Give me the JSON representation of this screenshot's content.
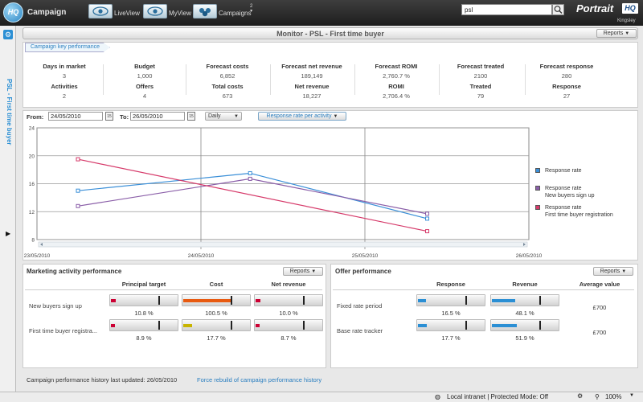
{
  "app": {
    "title": "Campaign",
    "logo": "HQ",
    "brand": "Portrait",
    "brand_badge": "HQ",
    "user": "Kingsley"
  },
  "nav": {
    "liveview": "LiveView",
    "myview": "MyView",
    "campaigns": "Campaigns",
    "campaigns_count": "2"
  },
  "search": {
    "value": "psl"
  },
  "sidebar": {
    "title": "PSL - First time buyer"
  },
  "page": {
    "title": "Monitor - PSL - First time buyer",
    "reports_label": "Reports"
  },
  "kpi": {
    "tab_label": "Campaign key performance",
    "row1": [
      {
        "label": "Days in market",
        "value": "3"
      },
      {
        "label": "Budget",
        "value": "1,000"
      },
      {
        "label": "Forecast costs",
        "value": "6,852"
      },
      {
        "label": "Forecast net revenue",
        "value": "189,149"
      },
      {
        "label": "Forecast ROMI",
        "value": "2,760.7 %"
      },
      {
        "label": "Forecast treated",
        "value": "2100"
      },
      {
        "label": "Forecast response",
        "value": "280"
      }
    ],
    "row2": [
      {
        "label": "Activities",
        "value": "2"
      },
      {
        "label": "Offers",
        "value": "4"
      },
      {
        "label": "Total costs",
        "value": "673"
      },
      {
        "label": "Net revenue",
        "value": "18,227"
      },
      {
        "label": "ROMI",
        "value": "2,706.4 %"
      },
      {
        "label": "Treated",
        "value": "79"
      },
      {
        "label": "Response",
        "value": "27"
      }
    ]
  },
  "chart_controls": {
    "from_label": "From:",
    "from_value": "24/05/2010",
    "to_label": "To:",
    "to_value": "26/05/2010",
    "cal_label": "15",
    "interval": "Daily",
    "metric": "Response rate per activity"
  },
  "chart_data": {
    "type": "line",
    "x": [
      "23/05/2010",
      "24/05/2010",
      "25/05/2010",
      "26/05/2010"
    ],
    "ylim": [
      8,
      24
    ],
    "yticks": [
      8,
      12,
      16,
      20,
      24
    ],
    "series": [
      {
        "name": "Response rate",
        "color": "#3a8fd8",
        "x": [
          0.25,
          1.3,
          2.38
        ],
        "values": [
          15,
          17.5,
          11
        ]
      },
      {
        "name": "Response rate\nNew buyers sign up",
        "color": "#8a5ea8",
        "x": [
          0.25,
          1.3,
          2.38
        ],
        "values": [
          12.8,
          16.7,
          11.7
        ]
      },
      {
        "name": "Response rate\nFirst time buyer registration",
        "color": "#d63a6a",
        "x": [
          0.25,
          2.38
        ],
        "values": [
          19.5,
          9.2
        ]
      }
    ],
    "legend": "right"
  },
  "activity": {
    "title": "Marketing activity performance",
    "reports_label": "Reports",
    "columns": [
      "Principal target",
      "Cost",
      "Net revenue"
    ],
    "rows": [
      {
        "label": "New buyers sign up",
        "cells": [
          {
            "text": "10.8 %",
            "fill": 0.108,
            "color": "#cc0033"
          },
          {
            "text": "100.5 %",
            "fill": 1.005,
            "color": "#e85a10"
          },
          {
            "text": "10.0 %",
            "fill": 0.1,
            "color": "#cc0033"
          }
        ]
      },
      {
        "label": "First time buyer registra...",
        "cells": [
          {
            "text": "8.9 %",
            "fill": 0.089,
            "color": "#cc0033"
          },
          {
            "text": "17.7 %",
            "fill": 0.177,
            "color": "#c8b400"
          },
          {
            "text": "8.7 %",
            "fill": 0.087,
            "color": "#cc0033"
          }
        ]
      }
    ]
  },
  "offers": {
    "title": "Offer performance",
    "reports_label": "Reports",
    "columns": [
      "Response",
      "Revenue",
      "Average value"
    ],
    "rows": [
      {
        "label": "Fixed rate period",
        "cells": [
          {
            "text": "16.5 %",
            "fill": 0.165,
            "color": "#2b8fd4"
          },
          {
            "text": "48.1 %",
            "fill": 0.481,
            "color": "#2b8fd4"
          }
        ],
        "avg": "£700"
      },
      {
        "label": "Base rate tracker",
        "cells": [
          {
            "text": "17.7 %",
            "fill": 0.177,
            "color": "#2b8fd4"
          },
          {
            "text": "51.9 %",
            "fill": 0.519,
            "color": "#2b8fd4"
          }
        ],
        "avg": "£700"
      }
    ]
  },
  "footer": {
    "history_label": "Campaign performance history last updated:",
    "history_date": "26/05/2010",
    "rebuild_link": "Force rebuild of campaign performance history"
  },
  "status": {
    "zone": "Local intranet | Protected Mode: Off",
    "zoom": "100%"
  }
}
